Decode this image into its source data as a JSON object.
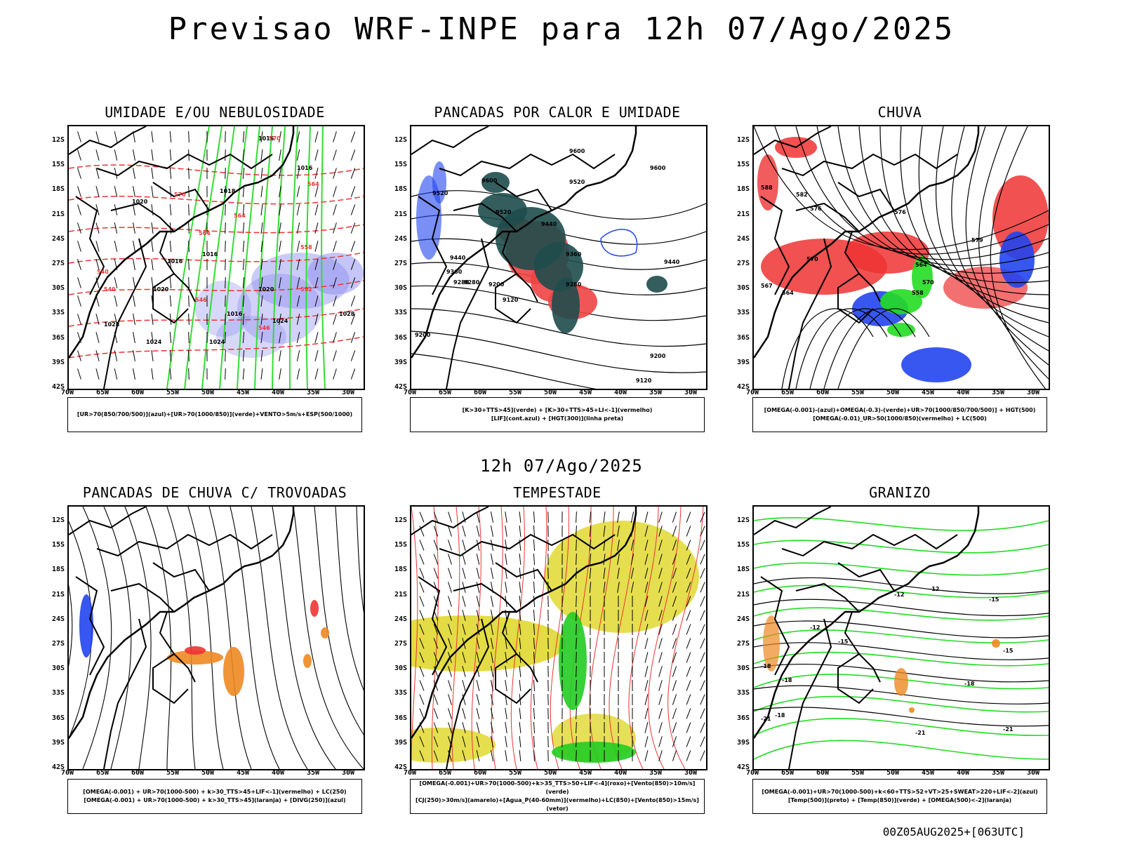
{
  "title": "Previsao WRF-INPE  para 12h 07/Ago/2025",
  "subtitle": "12h 07/Ago/2025",
  "footer": "00Z05AUG2025+[063UTC]",
  "lat_labels": [
    "12S",
    "15S",
    "18S",
    "21S",
    "24S",
    "27S",
    "30S",
    "33S",
    "36S",
    "39S",
    "42S"
  ],
  "lon_labels": [
    "70W",
    "65W",
    "60W",
    "55W",
    "50W",
    "45W",
    "40W",
    "35W",
    "30W"
  ],
  "panels": [
    {
      "title": "UMIDADE E/OU NEBULOSIDADE",
      "legend": [
        "[UR>70(850/700/500)](azul)+[UR>70(1000/850)](verde)+VENTO>5m/s+ESP(500/1000)"
      ]
    },
    {
      "title": "PANCADAS POR CALOR E UMIDADE",
      "legend": [
        "[K>30+TTS>45](verde) + [K>30+TTS>45+LI<-1](vermelho)",
        "[LIF](cont.azul) + [HGT(300)](linha preta)"
      ]
    },
    {
      "title": "CHUVA",
      "legend": [
        "[OMEGA(-0.001)-(azul)+OMEGA(-0.3)-(verde)+UR>70(1000/850/700/500)] + HGT(500)",
        "[OMEGA(-0.01)_UR>50(1000/850)(vermelho) + LC(500)"
      ]
    },
    {
      "title": "PANCADAS DE CHUVA C/ TROVOADAS",
      "legend": [
        "[OMEGA(-0.001) + UR>70(1000-500) + k>30_TTS>45+LIF<-1](vermelho) + LC(250)",
        "[OMEGA(-0.001) + UR>70(1000-500) + k>30_TTS>45](laranja) + [DIVG(250)](azul)"
      ]
    },
    {
      "title": "TEMPESTADE",
      "legend": [
        "[OMEGA(-0.001)+UR>70(1000-500)+k>35_TTS>50+LIF<-4](roxo)+[Vento(850)>10m/s](verde)",
        "[CJ(250)>30m/s](amarelo)+[Agua_P(40-60mm)](vermelho)+LC(850)+[Vento(850)>15m/s](vetor)"
      ]
    },
    {
      "title": "GRANIZO",
      "legend": [
        "[OMEGA(-0.001)+UR>70(1000-500)+k<60+TTS>52+VT>25+SWEAT>220+LIF<-2](azul)",
        "[Temp(500)](preto) + [Temp(850)](verde) + [OMEGA(500)<-2](laranja)"
      ]
    }
  ],
  "map_labels": {
    "p1": [
      "1016",
      "1016",
      "1018",
      "1020",
      "1016",
      "1016",
      "1020",
      "1020",
      "1016",
      "1024",
      "1028",
      "1024",
      "1024",
      "1028",
      "570",
      "570",
      "564",
      "564",
      "564",
      "558",
      "552",
      "546",
      "546",
      "540",
      "540"
    ],
    "p2": [
      "9600",
      "9600",
      "9520",
      "9600",
      "9520",
      "9520",
      "9440",
      "9440",
      "9360",
      "9440",
      "9360",
      "9280",
      "9280",
      "9200",
      "9120",
      "9200",
      "9200",
      "9120",
      "9280"
    ],
    "p3": [
      "588",
      "582",
      "576",
      "576",
      "570",
      "570",
      "567",
      "564",
      "564",
      "558",
      "579"
    ],
    "p6": [
      "-12",
      "-12",
      "-12",
      "-15",
      "-15",
      "-18",
      "-18",
      "-18",
      "-21",
      "-21",
      "-21",
      "-15",
      "-18"
    ]
  }
}
